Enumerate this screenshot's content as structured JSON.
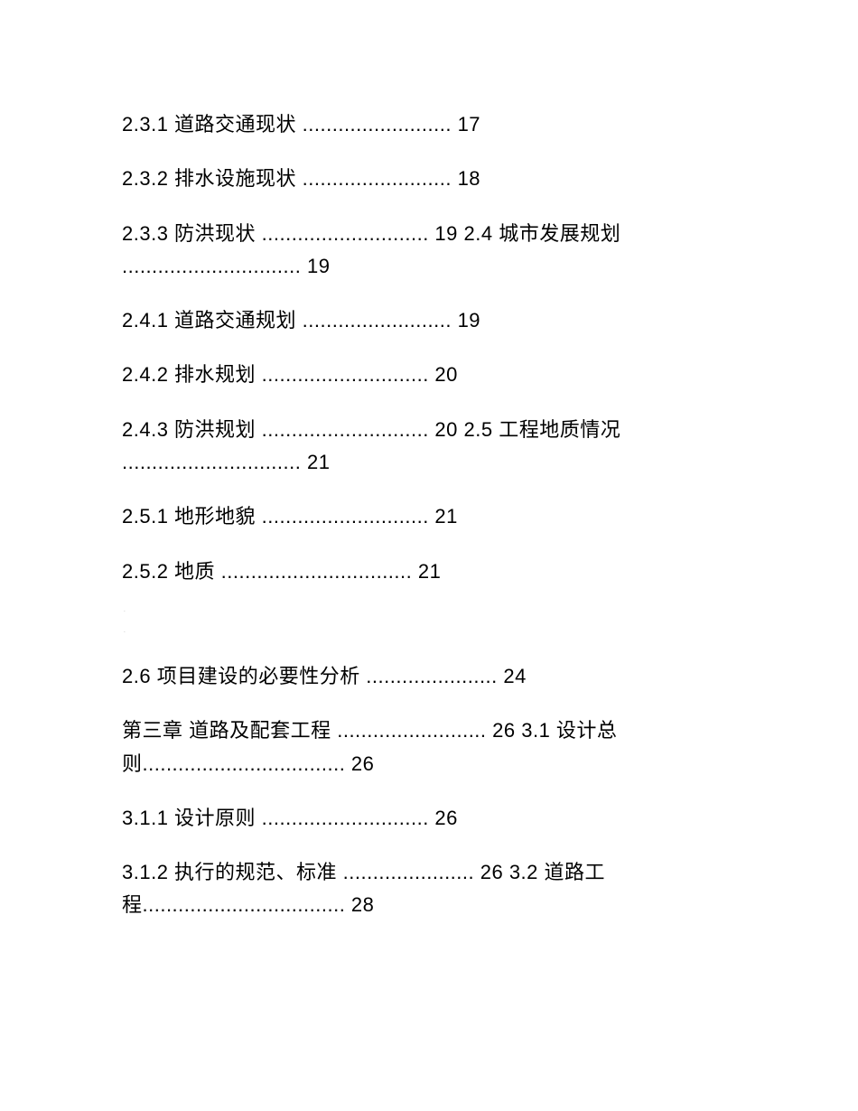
{
  "text_color": "#000000",
  "background_color": "#ffffff",
  "font_size_pt": 16,
  "lines": {
    "l1": "2.3.1 道路交通现状 ......................... 17",
    "l2": "2.3.2 排水设施现状 ......................... 18",
    "l3": "2.3.3 防洪现状 ............................ 19 2.4 城市发展规划 .............................. 19",
    "l4": "2.4.1 道路交通规划 ......................... 19",
    "l5": "2.4.2 排水规划 ............................ 20",
    "l6": "2.4.3 防洪规划 ............................ 20 2.5 工程地质情况 .............................. 21",
    "l7": "2.5.1 地形地貌 ............................ 21",
    "l8": "2.5.2 地质 ................................ 21",
    "l9": "2.6 项目建设的必要性分析 ...................... 24",
    "l10": "第三章 道路及配套工程 ......................... 26 3.1 设计总则.................................. 26",
    "l11": "3.1.1 设计原则 ............................ 26",
    "l12": "3.1.2 执行的规范、标准 ...................... 26 3.2 道路工程.................................. 28"
  },
  "markers": {
    "m1": "-",
    "m2": "-"
  }
}
